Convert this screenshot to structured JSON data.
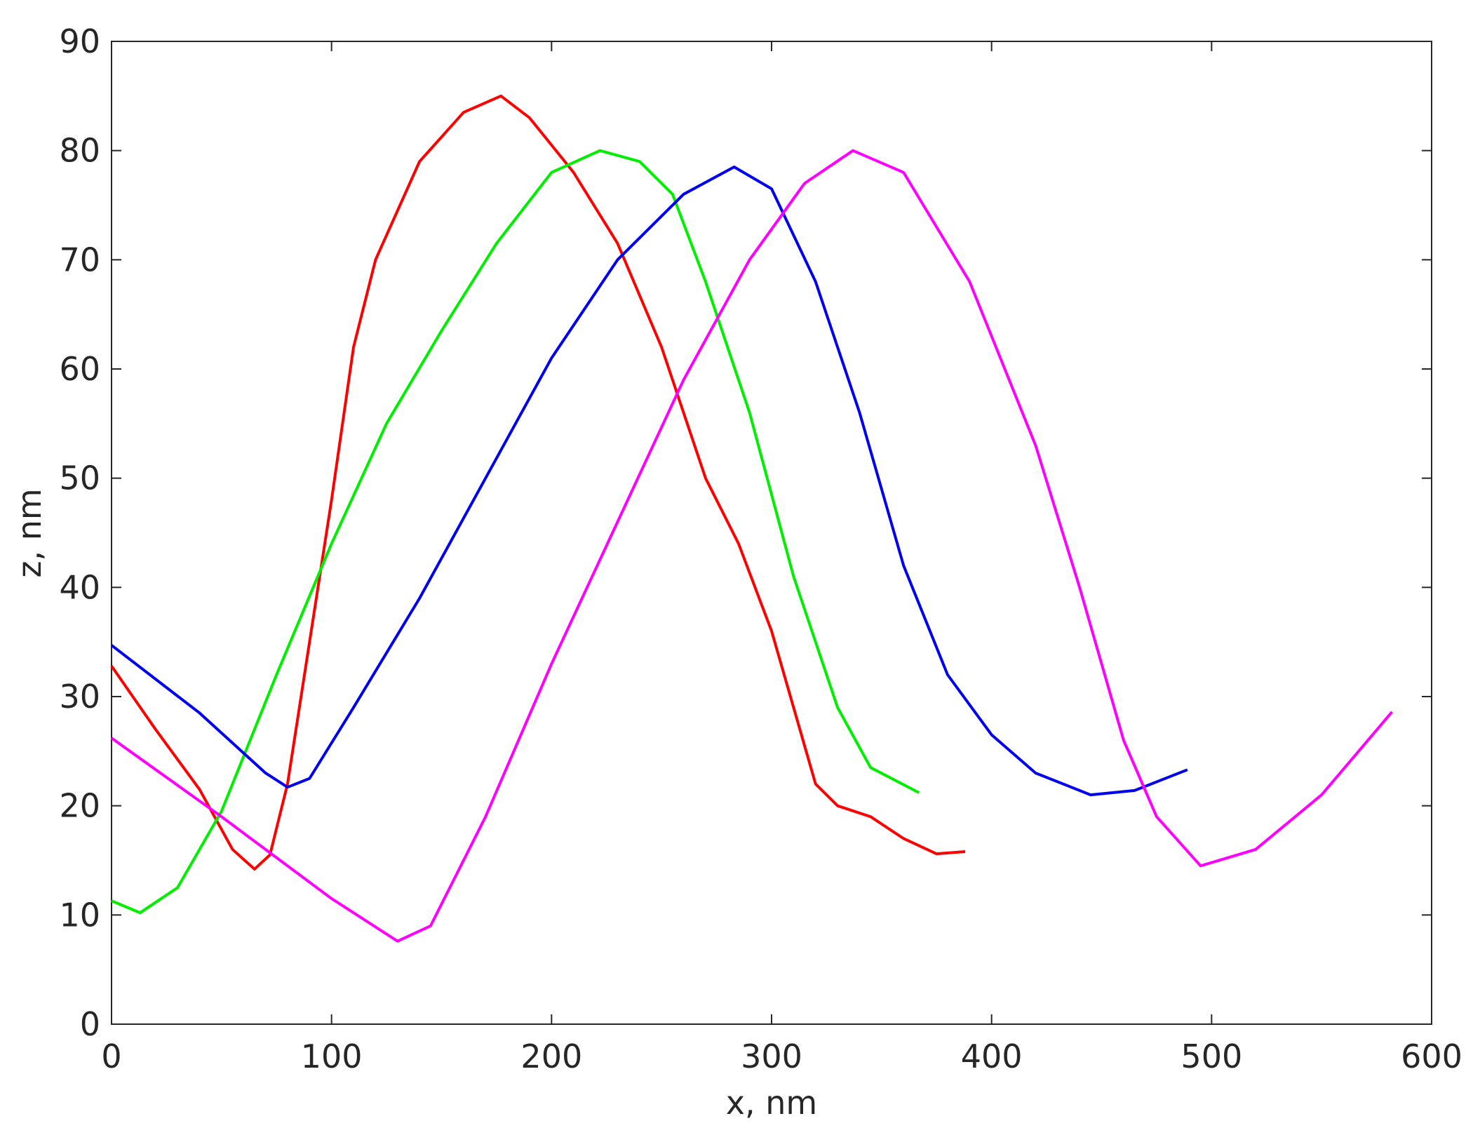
{
  "chart_data": {
    "type": "line",
    "xlabel": "x, nm",
    "ylabel": "z, nm",
    "xlim": [
      0,
      600
    ],
    "xticks": [
      0,
      100,
      200,
      300,
      400,
      500,
      600
    ],
    "ylim": [
      0,
      90
    ],
    "yticks": [
      0,
      10,
      20,
      30,
      40,
      50,
      60,
      70,
      80,
      90
    ],
    "grid": false,
    "series": [
      {
        "color": "#ff0000",
        "x": [
          0,
          20,
          40,
          55,
          65,
          72,
          80,
          90,
          100,
          110,
          120,
          140,
          160,
          177,
          190,
          210,
          230,
          250,
          260,
          270,
          285,
          300,
          310,
          320,
          330,
          345,
          360,
          375,
          388
        ],
        "values": [
          32.8,
          27,
          21.5,
          16,
          14.2,
          15.5,
          22,
          35,
          48,
          62,
          70,
          79,
          83.5,
          85,
          83,
          78,
          71.5,
          62,
          56,
          50,
          44,
          36,
          29,
          22,
          20,
          19,
          17,
          15.6,
          15.8
        ]
      },
      {
        "color": "#00ee00",
        "x": [
          0,
          13,
          30,
          50,
          75,
          100,
          125,
          150,
          175,
          200,
          222,
          240,
          255,
          270,
          290,
          310,
          330,
          345,
          367
        ],
        "values": [
          11.3,
          10.2,
          12.5,
          19.5,
          32,
          44,
          55,
          63.5,
          71.5,
          78,
          80,
          79,
          76,
          68,
          56,
          41,
          29,
          23.5,
          21.2
        ]
      },
      {
        "color": "#0000ee",
        "x": [
          0,
          40,
          70,
          80,
          90,
          110,
          140,
          170,
          200,
          230,
          260,
          283,
          300,
          320,
          340,
          360,
          380,
          400,
          420,
          445,
          465,
          489
        ],
        "values": [
          34.7,
          28.5,
          23,
          21.7,
          22.5,
          29,
          39,
          50,
          61,
          70,
          76,
          78.5,
          76.5,
          68,
          56,
          42,
          32,
          26.5,
          23,
          21,
          21.4,
          23.3
        ]
      },
      {
        "color": "#ff00ff",
        "x": [
          0,
          50,
          100,
          130,
          145,
          170,
          200,
          230,
          260,
          290,
          315,
          337,
          360,
          390,
          420,
          440,
          460,
          475,
          495,
          520,
          550,
          582
        ],
        "values": [
          26.2,
          19,
          11.5,
          7.6,
          9,
          19,
          33,
          46,
          59,
          70,
          77,
          80,
          78,
          68,
          53,
          40,
          26,
          19,
          14.5,
          16,
          21,
          28.6
        ]
      }
    ]
  }
}
